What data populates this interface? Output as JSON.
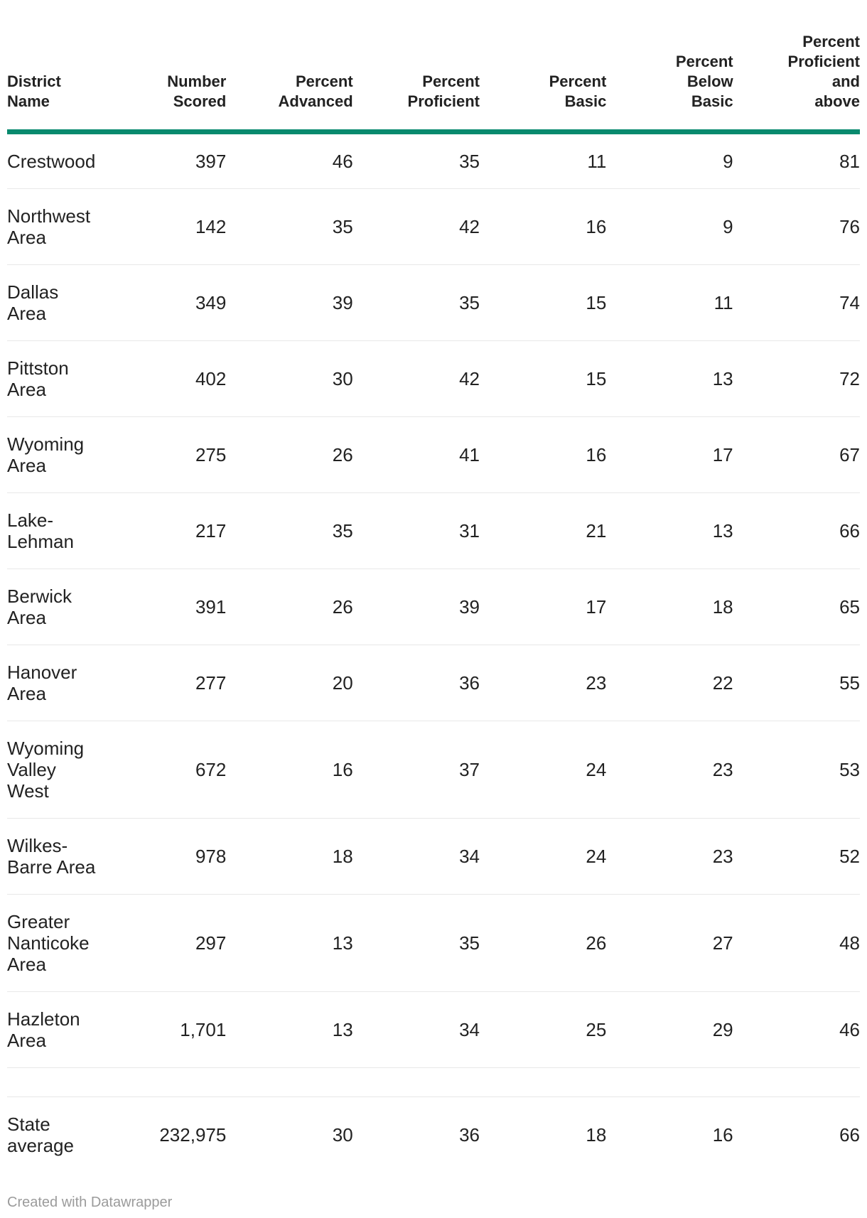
{
  "colors": {
    "header_rule": "#088a6e",
    "row_separator": "#e8e8e8",
    "text": "#222222",
    "footer_text": "#9b9b9b",
    "background": "#ffffff"
  },
  "table": {
    "header": {
      "columns": [
        {
          "id": "district-name",
          "label": "District Name",
          "lines": [
            "District",
            "Name"
          ],
          "align": "left"
        },
        {
          "id": "number-scored",
          "label": "Number Scored",
          "lines": [
            "Number",
            "Scored"
          ],
          "align": "right"
        },
        {
          "id": "percent-advanced",
          "label": "Percent Advanced",
          "lines": [
            "Percent",
            "Advanced"
          ],
          "align": "right"
        },
        {
          "id": "percent-proficient",
          "label": "Percent Proficient",
          "lines": [
            "Percent",
            "Proficient"
          ],
          "align": "right"
        },
        {
          "id": "percent-basic",
          "label": "Percent Basic",
          "lines": [
            "Percent",
            "Basic"
          ],
          "align": "right"
        },
        {
          "id": "percent-below-basic",
          "label": "Percent Below Basic",
          "lines": [
            "Percent",
            "Below",
            "Basic"
          ],
          "align": "right"
        },
        {
          "id": "percent-proficient-above",
          "label": "Percent Proficient and above",
          "lines": [
            "Percent",
            "Proficient",
            "and",
            "above"
          ],
          "align": "right"
        }
      ]
    },
    "rows": [
      {
        "id": "crestwood",
        "cells": [
          "Crestwood",
          "397",
          "46",
          "35",
          "11",
          "9",
          "81"
        ]
      },
      {
        "id": "northwest-area",
        "cells": [
          "Northwest Area",
          "142",
          "35",
          "42",
          "16",
          "9",
          "76"
        ]
      },
      {
        "id": "dallas-area",
        "cells": [
          "Dallas Area",
          "349",
          "39",
          "35",
          "15",
          "11",
          "74"
        ]
      },
      {
        "id": "pittston-area",
        "cells": [
          "Pittston Area",
          "402",
          "30",
          "42",
          "15",
          "13",
          "72"
        ]
      },
      {
        "id": "wyoming-area",
        "cells": [
          "Wyoming Area",
          "275",
          "26",
          "41",
          "16",
          "17",
          "67"
        ]
      },
      {
        "id": "lake-lehman",
        "cells": [
          "Lake-Lehman",
          "217",
          "35",
          "31",
          "21",
          "13",
          "66"
        ]
      },
      {
        "id": "berwick-area",
        "cells": [
          "Berwick Area",
          "391",
          "26",
          "39",
          "17",
          "18",
          "65"
        ]
      },
      {
        "id": "hanover-area",
        "cells": [
          "Hanover Area",
          "277",
          "20",
          "36",
          "23",
          "22",
          "55"
        ]
      },
      {
        "id": "wyoming-valley-west",
        "cells": [
          "Wyoming Valley West",
          "672",
          "16",
          "37",
          "24",
          "23",
          "53"
        ]
      },
      {
        "id": "wilkes-barre-area",
        "cells": [
          "Wilkes-Barre Area",
          "978",
          "18",
          "34",
          "24",
          "23",
          "52"
        ]
      },
      {
        "id": "greater-nanticoke-area",
        "cells": [
          "Greater Nanticoke Area",
          "297",
          "13",
          "35",
          "26",
          "27",
          "48"
        ]
      },
      {
        "id": "hazleton-area",
        "cells": [
          "Hazleton Area",
          "1,701",
          "13",
          "34",
          "25",
          "29",
          "46"
        ]
      },
      {
        "id": "spacer",
        "cells": [
          "",
          "",
          "",
          "",
          "",
          "",
          ""
        ]
      },
      {
        "id": "state-average",
        "cells": [
          "State average",
          "232,975",
          "30",
          "36",
          "18",
          "16",
          "66"
        ]
      }
    ]
  },
  "footer": {
    "label": "Created with Datawrapper"
  },
  "chart_data": {
    "type": "table",
    "columns": [
      "District Name",
      "Number Scored",
      "Percent Advanced",
      "Percent Proficient",
      "Percent Basic",
      "Percent Below Basic",
      "Percent Proficient and above"
    ],
    "rows": [
      [
        "Crestwood",
        397,
        46,
        35,
        11,
        9,
        81
      ],
      [
        "Northwest Area",
        142,
        35,
        42,
        16,
        9,
        76
      ],
      [
        "Dallas Area",
        349,
        39,
        35,
        15,
        11,
        74
      ],
      [
        "Pittston Area",
        402,
        30,
        42,
        15,
        13,
        72
      ],
      [
        "Wyoming Area",
        275,
        26,
        41,
        16,
        17,
        67
      ],
      [
        "Lake-Lehman",
        217,
        35,
        31,
        21,
        13,
        66
      ],
      [
        "Berwick Area",
        391,
        26,
        39,
        17,
        18,
        65
      ],
      [
        "Hanover Area",
        277,
        20,
        36,
        23,
        22,
        55
      ],
      [
        "Wyoming Valley West",
        672,
        16,
        37,
        24,
        23,
        53
      ],
      [
        "Wilkes-Barre Area",
        978,
        18,
        34,
        24,
        23,
        52
      ],
      [
        "Greater Nanticoke Area",
        297,
        13,
        35,
        26,
        27,
        48
      ],
      [
        "Hazleton Area",
        1701,
        13,
        34,
        25,
        29,
        46
      ],
      [
        "State average",
        232975,
        30,
        36,
        18,
        16,
        66
      ]
    ],
    "title": "",
    "legend_position": "none",
    "grid": "horizontal-separators-only"
  }
}
